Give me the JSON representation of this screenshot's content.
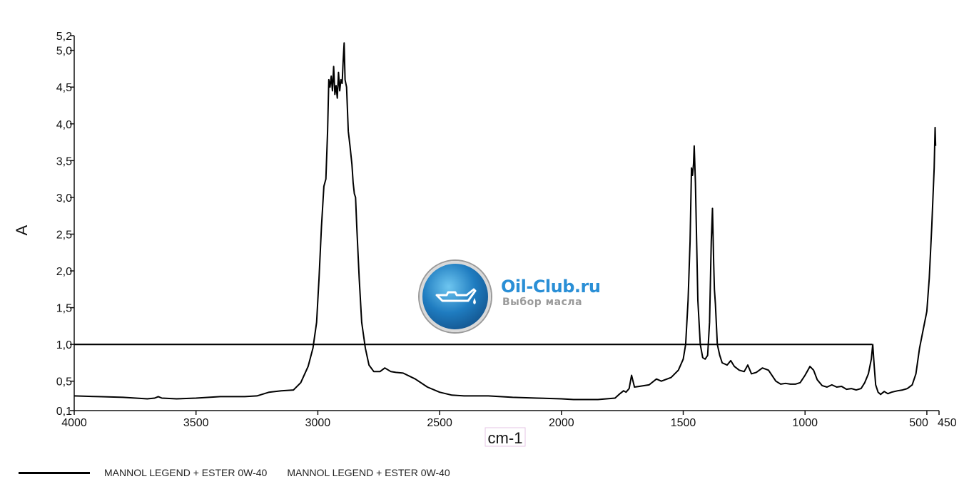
{
  "chart_data": {
    "type": "line",
    "xlabel": "cm-1",
    "ylabel": "A",
    "xlim": [
      4000,
      450
    ],
    "ylim": [
      0.1,
      5.2
    ],
    "x_ticks": [
      4000,
      3500,
      3000,
      2500,
      2000,
      1500,
      1000,
      500,
      450
    ],
    "x_tick_labels": [
      "4000",
      "3500",
      "3000",
      "2500",
      "2000",
      "1500",
      "1000",
      "500",
      "450"
    ],
    "y_ticks": [
      0.1,
      0.5,
      1.0,
      1.5,
      2.0,
      2.5,
      3.0,
      3.5,
      4.0,
      4.5,
      5.0,
      5.2
    ],
    "y_tick_labels": [
      "0,1",
      "0,5",
      "1,0",
      "1,5",
      "2,0",
      "2,5",
      "3,0",
      "3,5",
      "4,0",
      "4,5",
      "5,0",
      "5,2"
    ],
    "grid": false,
    "reference_line": {
      "y": 1.0,
      "x_from": 4000,
      "x_to": 725
    },
    "series": [
      {
        "name": "MANNOL LEGEND + ESTER 0W-40",
        "color": "#000000",
        "points": [
          [
            4000,
            0.3
          ],
          [
            3900,
            0.29
          ],
          [
            3800,
            0.28
          ],
          [
            3700,
            0.26
          ],
          [
            3670,
            0.27
          ],
          [
            3655,
            0.29
          ],
          [
            3640,
            0.27
          ],
          [
            3580,
            0.26
          ],
          [
            3500,
            0.27
          ],
          [
            3400,
            0.29
          ],
          [
            3300,
            0.29
          ],
          [
            3250,
            0.3
          ],
          [
            3200,
            0.35
          ],
          [
            3150,
            0.37
          ],
          [
            3100,
            0.38
          ],
          [
            3070,
            0.48
          ],
          [
            3040,
            0.7
          ],
          [
            3020,
            0.95
          ],
          [
            3005,
            1.3
          ],
          [
            2995,
            1.9
          ],
          [
            2985,
            2.6
          ],
          [
            2975,
            3.15
          ],
          [
            2967,
            3.25
          ],
          [
            2960,
            3.9
          ],
          [
            2955,
            4.6
          ],
          [
            2950,
            4.5
          ],
          [
            2945,
            4.65
          ],
          [
            2940,
            4.45
          ],
          [
            2935,
            4.78
          ],
          [
            2930,
            4.4
          ],
          [
            2925,
            4.52
          ],
          [
            2920,
            4.35
          ],
          [
            2915,
            4.7
          ],
          [
            2910,
            4.45
          ],
          [
            2905,
            4.6
          ],
          [
            2900,
            4.55
          ],
          [
            2896,
            4.85
          ],
          [
            2892,
            5.1
          ],
          [
            2888,
            4.6
          ],
          [
            2882,
            4.5
          ],
          [
            2875,
            3.9
          ],
          [
            2868,
            3.7
          ],
          [
            2860,
            3.45
          ],
          [
            2855,
            3.2
          ],
          [
            2850,
            3.05
          ],
          [
            2845,
            3.0
          ],
          [
            2840,
            2.6
          ],
          [
            2830,
            1.9
          ],
          [
            2820,
            1.3
          ],
          [
            2805,
            0.95
          ],
          [
            2790,
            0.72
          ],
          [
            2770,
            0.63
          ],
          [
            2745,
            0.63
          ],
          [
            2725,
            0.68
          ],
          [
            2700,
            0.63
          ],
          [
            2680,
            0.62
          ],
          [
            2650,
            0.61
          ],
          [
            2600,
            0.53
          ],
          [
            2550,
            0.42
          ],
          [
            2500,
            0.35
          ],
          [
            2450,
            0.31
          ],
          [
            2400,
            0.3
          ],
          [
            2300,
            0.3
          ],
          [
            2200,
            0.28
          ],
          [
            2100,
            0.27
          ],
          [
            2000,
            0.26
          ],
          [
            1950,
            0.25
          ],
          [
            1900,
            0.25
          ],
          [
            1850,
            0.25
          ],
          [
            1780,
            0.27
          ],
          [
            1760,
            0.33
          ],
          [
            1745,
            0.37
          ],
          [
            1735,
            0.35
          ],
          [
            1722,
            0.4
          ],
          [
            1712,
            0.58
          ],
          [
            1700,
            0.42
          ],
          [
            1680,
            0.43
          ],
          [
            1640,
            0.45
          ],
          [
            1610,
            0.53
          ],
          [
            1590,
            0.5
          ],
          [
            1550,
            0.55
          ],
          [
            1520,
            0.65
          ],
          [
            1500,
            0.8
          ],
          [
            1490,
            1.0
          ],
          [
            1480,
            1.6
          ],
          [
            1472,
            2.4
          ],
          [
            1466,
            3.4
          ],
          [
            1462,
            3.3
          ],
          [
            1458,
            3.45
          ],
          [
            1455,
            3.7
          ],
          [
            1450,
            3.2
          ],
          [
            1445,
            2.4
          ],
          [
            1440,
            1.6
          ],
          [
            1430,
            1.0
          ],
          [
            1420,
            0.82
          ],
          [
            1410,
            0.8
          ],
          [
            1400,
            0.85
          ],
          [
            1392,
            1.3
          ],
          [
            1385,
            2.4
          ],
          [
            1380,
            2.85
          ],
          [
            1375,
            2.1
          ],
          [
            1372,
            1.75
          ],
          [
            1368,
            1.55
          ],
          [
            1360,
            1.0
          ],
          [
            1350,
            0.85
          ],
          [
            1340,
            0.75
          ],
          [
            1320,
            0.72
          ],
          [
            1305,
            0.78
          ],
          [
            1290,
            0.7
          ],
          [
            1270,
            0.65
          ],
          [
            1250,
            0.63
          ],
          [
            1235,
            0.72
          ],
          [
            1220,
            0.6
          ],
          [
            1200,
            0.62
          ],
          [
            1175,
            0.68
          ],
          [
            1150,
            0.65
          ],
          [
            1120,
            0.5
          ],
          [
            1100,
            0.46
          ],
          [
            1080,
            0.47
          ],
          [
            1060,
            0.46
          ],
          [
            1040,
            0.46
          ],
          [
            1020,
            0.48
          ],
          [
            1000,
            0.58
          ],
          [
            980,
            0.7
          ],
          [
            965,
            0.65
          ],
          [
            950,
            0.52
          ],
          [
            930,
            0.44
          ],
          [
            910,
            0.42
          ],
          [
            890,
            0.45
          ],
          [
            870,
            0.42
          ],
          [
            850,
            0.43
          ],
          [
            830,
            0.39
          ],
          [
            810,
            0.4
          ],
          [
            790,
            0.38
          ],
          [
            770,
            0.4
          ],
          [
            755,
            0.48
          ],
          [
            740,
            0.6
          ],
          [
            728,
            0.8
          ],
          [
            722,
            1.0
          ],
          [
            716,
            0.7
          ],
          [
            710,
            0.45
          ],
          [
            700,
            0.35
          ],
          [
            690,
            0.32
          ],
          [
            675,
            0.36
          ],
          [
            660,
            0.33
          ],
          [
            645,
            0.35
          ],
          [
            620,
            0.37
          ],
          [
            600,
            0.38
          ],
          [
            580,
            0.4
          ],
          [
            560,
            0.45
          ],
          [
            545,
            0.6
          ],
          [
            530,
            0.95
          ],
          [
            515,
            1.2
          ],
          [
            500,
            1.45
          ],
          [
            490,
            1.9
          ],
          [
            480,
            2.6
          ],
          [
            470,
            3.4
          ],
          [
            466,
            3.95
          ],
          [
            464,
            3.7
          ]
        ]
      }
    ]
  },
  "legend": {
    "entries": [
      {
        "label": "MANNOL LEGEND + ESTER 0W-40"
      },
      {
        "label": "MANNOL LEGEND + ESTER 0W-40"
      }
    ]
  },
  "watermark": {
    "title": "Oil-Club.ru",
    "subtitle": "Выбор масла",
    "icon": "oil-can-icon"
  }
}
